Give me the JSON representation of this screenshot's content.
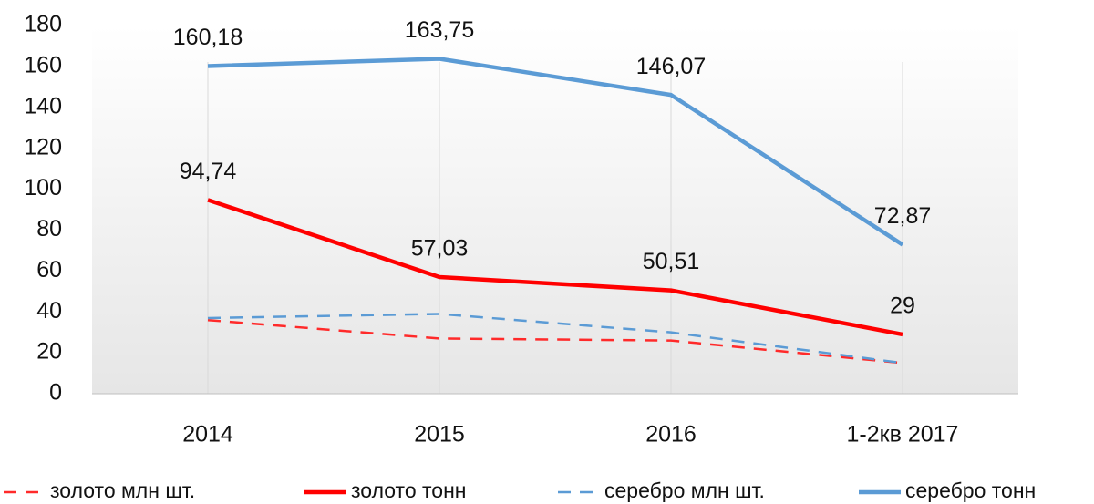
{
  "chart_data": {
    "type": "line",
    "categories": [
      "2014",
      "2015",
      "2016",
      "1-2кв 2017"
    ],
    "ylim": [
      0,
      180
    ],
    "yticks": [
      0,
      20,
      40,
      60,
      80,
      100,
      120,
      140,
      160,
      180
    ],
    "grid": true,
    "legend": "bottom",
    "series": [
      {
        "name": "золото млн шт.",
        "color": "#ff2a2a",
        "dashed": true,
        "values": [
          36,
          27,
          26,
          15
        ]
      },
      {
        "name": "золото тонн",
        "color": "#ff0000",
        "dashed": false,
        "values": [
          94.74,
          57.03,
          50.51,
          29
        ],
        "value_labels": [
          "94,74",
          "57,03",
          "50,51",
          "29"
        ]
      },
      {
        "name": "серебро млн шт.",
        "color": "#5b9bd5",
        "dashed": true,
        "values": [
          37,
          39,
          30,
          15
        ]
      },
      {
        "name": "серебро тонн",
        "color": "#5b9bd5",
        "dashed": false,
        "values": [
          160.18,
          163.75,
          146.07,
          72.87
        ],
        "value_labels": [
          "160,18",
          "163,75",
          "146,07",
          "72,87"
        ]
      }
    ]
  }
}
